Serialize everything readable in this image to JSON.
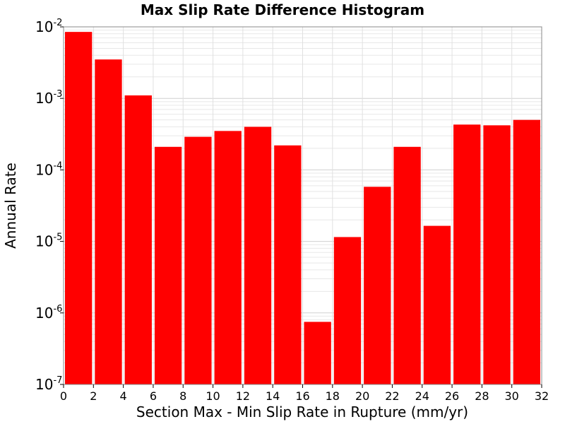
{
  "chart_data": {
    "type": "bar",
    "title": "Max Slip Rate Difference Histogram",
    "xlabel": "Section Max - Min Slip Rate in Rupture (mm/yr)",
    "ylabel": "Annual Rate",
    "xlim": [
      0,
      32
    ],
    "ylim": [
      1e-07,
      0.01
    ],
    "yscale": "log",
    "grid": true,
    "bar_color": "#ff0000",
    "bin_width": 2,
    "bins": [
      {
        "x": 1,
        "value": 0.0085
      },
      {
        "x": 3,
        "value": 0.0035
      },
      {
        "x": 5,
        "value": 0.0011
      },
      {
        "x": 7,
        "value": 0.00021
      },
      {
        "x": 9,
        "value": 0.00029
      },
      {
        "x": 11,
        "value": 0.00035
      },
      {
        "x": 13,
        "value": 0.0004
      },
      {
        "x": 15,
        "value": 0.00022
      },
      {
        "x": 17,
        "value": 7.5e-07
      },
      {
        "x": 19,
        "value": 1.15e-05
      },
      {
        "x": 21,
        "value": 5.8e-05
      },
      {
        "x": 23,
        "value": 0.00021
      },
      {
        "x": 25,
        "value": 1.65e-05
      },
      {
        "x": 27,
        "value": 0.00043
      },
      {
        "x": 29,
        "value": 0.00042
      },
      {
        "x": 31,
        "value": 0.0005
      }
    ],
    "x_ticks": [
      "0",
      "2",
      "4",
      "6",
      "8",
      "10",
      "12",
      "14",
      "16",
      "18",
      "20",
      "22",
      "24",
      "26",
      "28",
      "30",
      "32"
    ],
    "y_ticks": [
      {
        "base": "10",
        "exp": "-2"
      },
      {
        "base": "10",
        "exp": "-3"
      },
      {
        "base": "10",
        "exp": "-4"
      },
      {
        "base": "10",
        "exp": "-5"
      },
      {
        "base": "10",
        "exp": "-6"
      },
      {
        "base": "10",
        "exp": "-7"
      }
    ]
  }
}
